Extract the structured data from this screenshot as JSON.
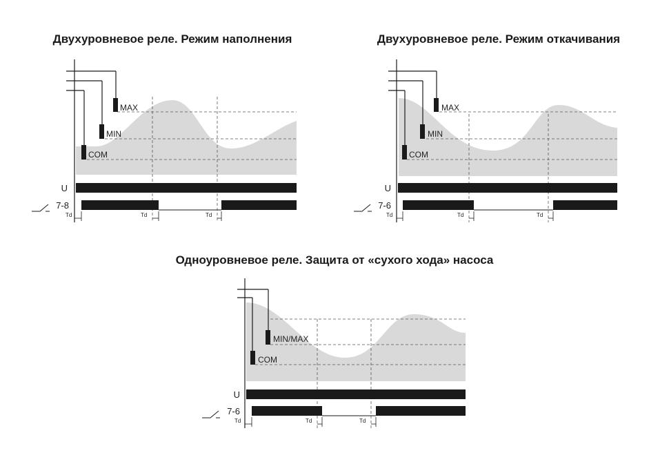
{
  "diagrams": [
    {
      "title": "Двухуровневое реле. Режим наполнения",
      "probes": [
        {
          "label": "MAX"
        },
        {
          "label": "MIN"
        },
        {
          "label": "COM"
        }
      ],
      "supply_label": "U",
      "relay_label": "7-8",
      "delay_label": "Td"
    },
    {
      "title": "Двухуровневое реле. Режим откачивания",
      "probes": [
        {
          "label": "MAX"
        },
        {
          "label": "MIN"
        },
        {
          "label": "COM"
        }
      ],
      "supply_label": "U",
      "relay_label": "7-6",
      "delay_label": "Td"
    },
    {
      "title": "Одноуровневое реле. Защита от «сухого хода» насоса",
      "probes": [
        {
          "label": "MIN/MAX"
        },
        {
          "label": "COM"
        }
      ],
      "supply_label": "U",
      "relay_label": "7-6",
      "delay_label": "Td"
    }
  ],
  "colors": {
    "fill": "#d9d9d9",
    "line": "#1a1a1a",
    "dash": "#555555"
  }
}
